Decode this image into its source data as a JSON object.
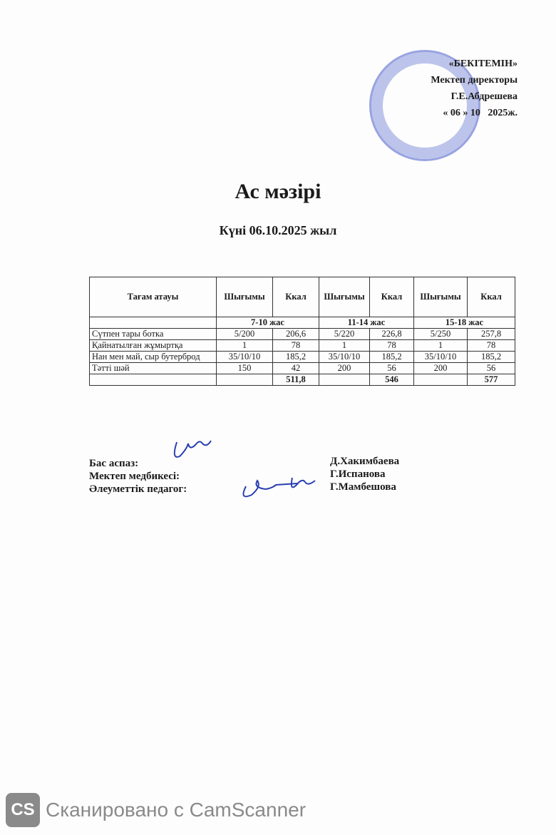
{
  "approval": {
    "org": "«БЕКІТЕМІН»",
    "position": "Мектеп директоры",
    "name": "Г.Е.Абдрешева",
    "date_day": "06",
    "date_month": "10",
    "date_year": "2025ж."
  },
  "title": "Ас мәзірі",
  "subtitle": "Күні 06.10.2025 жыл",
  "table": {
    "headers": [
      "Тағам атауы",
      "Шығымы",
      "Ккал",
      "Шығымы",
      "Ккал",
      "Шығымы",
      "Ккал"
    ],
    "age_groups": [
      "7-10 жас",
      "11-14 жас",
      "15-18 жас"
    ],
    "rows": [
      [
        "Сүтпен тары ботка",
        "5/200",
        "206,6",
        "5/220",
        "226,8",
        "5/250",
        "257,8"
      ],
      [
        "Қайнатылған жұмыртқа",
        "1",
        "78",
        "1",
        "78",
        "1",
        "78"
      ],
      [
        "Нан мен май, сыр бутерброд",
        "35/10/10",
        "185,2",
        "35/10/10",
        "185,2",
        "35/10/10",
        "185,2"
      ],
      [
        "Тәтті шәй",
        "150",
        "42",
        "200",
        "56",
        "200",
        "56"
      ]
    ],
    "totals": [
      "511,8",
      "546",
      "577"
    ]
  },
  "signatures": [
    {
      "role": "Бас аспаз:",
      "name": "Д.Хакимбаева"
    },
    {
      "role": "Мектеп медбикесі:",
      "name": "Г.Испанова"
    },
    {
      "role": "Әлеуметтік педагог:",
      "name": "Г.Мамбешова"
    }
  ],
  "watermark": {
    "logo": "CS",
    "text": "Сканировано с CamScanner"
  }
}
